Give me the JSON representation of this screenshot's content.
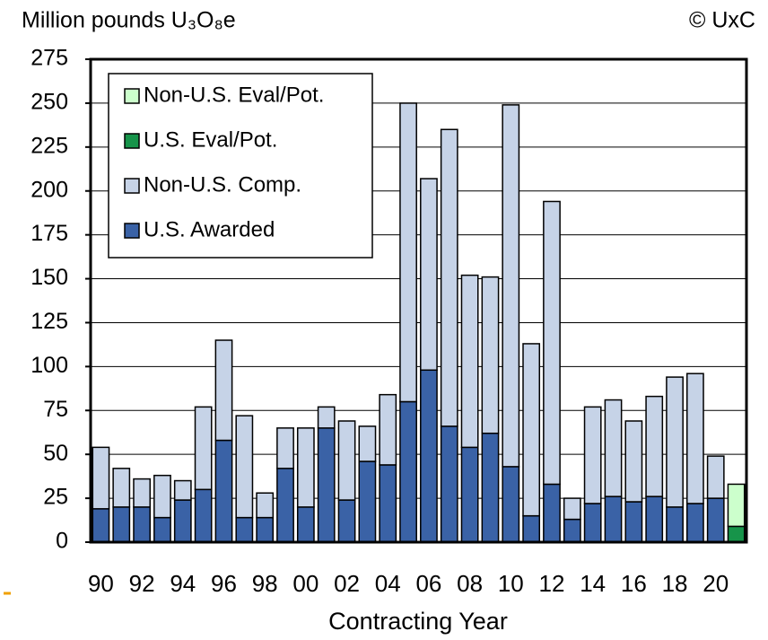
{
  "chart_data": {
    "type": "stacked_bar",
    "title": "Million pounds U₃O₈e",
    "source": "© UxC",
    "x_label": "Contracting Year",
    "categories": [
      "90",
      null,
      "92",
      null,
      "94",
      null,
      "96",
      null,
      "98",
      null,
      "00",
      null,
      "02",
      null,
      "04",
      null,
      "06",
      null,
      "08",
      null,
      "10",
      null,
      "12",
      null,
      "14",
      null,
      "16",
      null,
      "18",
      null,
      "20",
      null
    ],
    "series": [
      {
        "name": "U.S. Awarded",
        "color": "#3a62a6",
        "values": [
          19,
          20,
          20,
          14,
          24,
          30,
          58,
          14,
          14,
          42,
          20,
          65,
          24,
          46,
          44,
          80,
          98,
          66,
          54,
          62,
          43,
          15,
          33,
          13,
          22,
          26,
          23,
          26,
          20,
          22,
          25,
          null
        ]
      },
      {
        "name": "Non-U.S. Comp.",
        "color": "#c6d3e7",
        "values": [
          35,
          22,
          16,
          24,
          11,
          47,
          57,
          58,
          14,
          23,
          45,
          12,
          45,
          20,
          40,
          170,
          109,
          169,
          98,
          89,
          206,
          98,
          161,
          12,
          55,
          55,
          46,
          57,
          74,
          74,
          24,
          null
        ]
      },
      {
        "name": "U.S. Eval/Pot.",
        "color": "#17944a",
        "values": [
          null,
          null,
          null,
          null,
          null,
          null,
          null,
          null,
          null,
          null,
          null,
          null,
          null,
          null,
          null,
          null,
          null,
          null,
          null,
          null,
          null,
          null,
          null,
          null,
          null,
          null,
          null,
          null,
          null,
          null,
          null,
          9
        ]
      },
      {
        "name": "Non-U.S. Eval/Pot.",
        "color": "#ccffcc",
        "values": [
          null,
          null,
          null,
          null,
          null,
          null,
          null,
          null,
          null,
          null,
          null,
          null,
          null,
          null,
          null,
          null,
          null,
          null,
          null,
          null,
          null,
          null,
          null,
          null,
          null,
          null,
          null,
          null,
          null,
          null,
          null,
          24
        ]
      }
    ],
    "ylim": [
      0,
      275
    ],
    "yticks": [
      0,
      25,
      50,
      75,
      100,
      125,
      150,
      175,
      200,
      225,
      250,
      275
    ],
    "grid": true
  }
}
